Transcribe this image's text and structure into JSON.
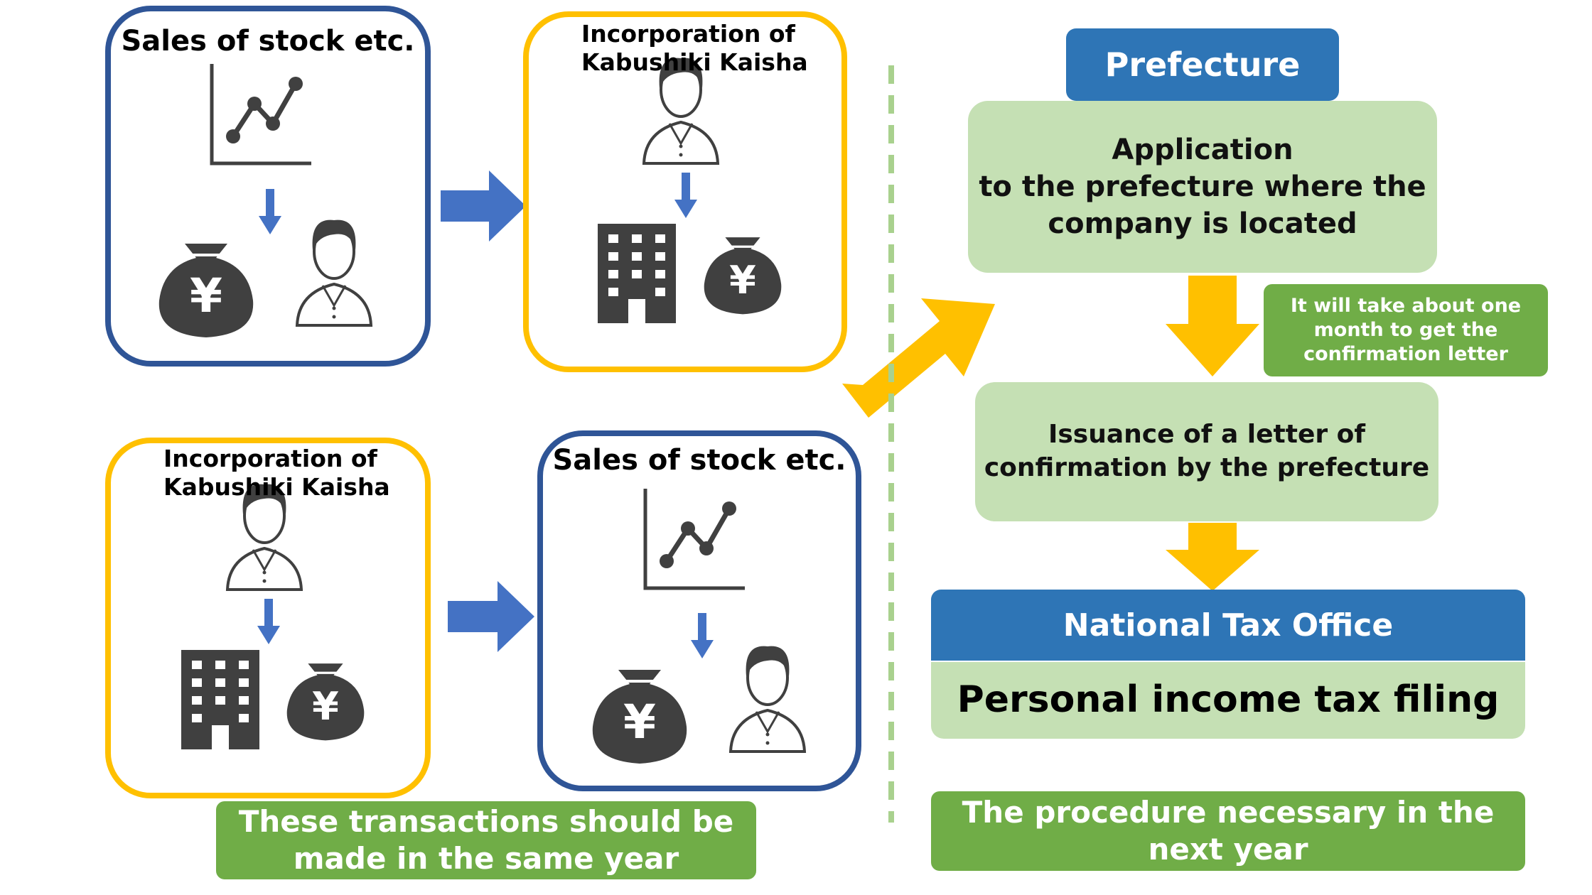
{
  "left": {
    "top_row": {
      "sales_box": {
        "title": "Sales of stock etc."
      },
      "incorporation_box": {
        "title": "Incorporation of\nKabushiki Kaisha"
      }
    },
    "bottom_row": {
      "incorporation_box": {
        "title": "Incorporation of\nKabushiki Kaisha"
      },
      "sales_box": {
        "title": "Sales of stock etc."
      }
    },
    "same_year_note": "These transactions should be\nmade in the same year"
  },
  "right": {
    "prefecture_header": "Prefecture",
    "application_text": "Application\nto the prefecture where the\ncompany is located",
    "duration_note": "It will take about one\nmonth to get the\nconfirmation letter",
    "issuance_text": "Issuance of a letter of\nconfirmation by the prefecture",
    "tax_office_header": "National Tax Office",
    "tax_filing_text": "Personal income tax filing",
    "next_year_note": "The procedure necessary in the\nnext year"
  },
  "icons": [
    "line-chart-icon",
    "yen-money-bag-icon",
    "person-icon",
    "office-building-icon",
    "arrow-right-icon",
    "arrow-down-icon"
  ],
  "colors": {
    "navy_border": "#2F5597",
    "gold_border": "#FFC000",
    "arrow_blue": "#4472C4",
    "arrow_gold": "#FFC000",
    "header_blue": "#2E75B6",
    "light_green": "#C5E0B4",
    "dark_green": "#70AD47",
    "icon_gray": "#404040",
    "divider_green": "#A9D18E"
  }
}
